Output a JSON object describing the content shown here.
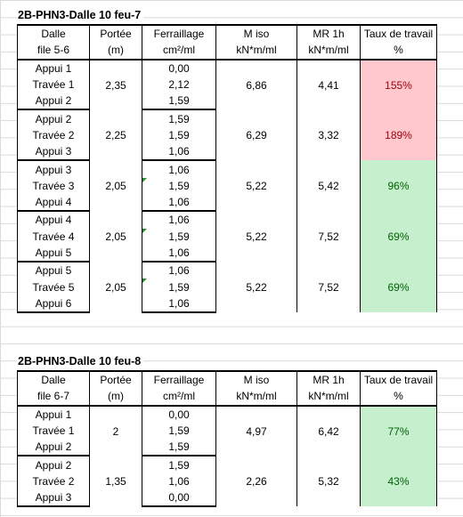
{
  "tables": [
    {
      "title": "2B-PHN3-Dalle 10 feu-7",
      "headers": {
        "row1": [
          "Dalle",
          "Portée",
          "Ferraillage",
          "M iso",
          "MR 1h",
          "Taux de travail"
        ],
        "row2": [
          "file 5-6",
          "(m)",
          "cm²/ml",
          "kN*m/ml",
          "kN*m/ml",
          "%"
        ]
      },
      "groups": [
        {
          "labels": [
            "Appui 1",
            "Travée 1",
            "Appui 2"
          ],
          "portee": "2,35",
          "ferr": [
            "0,00",
            "2,12",
            "1,59"
          ],
          "miso": "6,86",
          "mr": "4,41",
          "taux": "155%",
          "status": "red"
        },
        {
          "labels": [
            "Appui 2",
            "Travée 2",
            "Appui 3"
          ],
          "portee": "2,25",
          "ferr": [
            "1,59",
            "1,59",
            "1,06"
          ],
          "miso": "6,29",
          "mr": "3,32",
          "taux": "189%",
          "status": "red"
        },
        {
          "labels": [
            "Appui 3",
            "Travée 3",
            "Appui 4"
          ],
          "portee": "2,05",
          "ferr": [
            "1,06",
            "1,59",
            "1,06"
          ],
          "miso": "5,22",
          "mr": "5,42",
          "taux": "96%",
          "status": "green"
        },
        {
          "labels": [
            "Appui 4",
            "Travée 4",
            "Appui 5"
          ],
          "portee": "2,05",
          "ferr": [
            "1,06",
            "1,59",
            "1,06"
          ],
          "miso": "5,22",
          "mr": "7,52",
          "taux": "69%",
          "status": "green"
        },
        {
          "labels": [
            "Appui 5",
            "Travée 5",
            "Appui 6"
          ],
          "portee": "2,05",
          "ferr": [
            "1,06",
            "1,59",
            "1,06"
          ],
          "miso": "5,22",
          "mr": "7,52",
          "taux": "69%",
          "status": "green"
        }
      ]
    },
    {
      "title": "2B-PHN3-Dalle 10 feu-8",
      "headers": {
        "row1": [
          "Dalle",
          "Portée",
          "Ferraillage",
          "M iso",
          "MR 1h",
          "Taux de travail"
        ],
        "row2": [
          "file 6-7",
          "(m)",
          "cm²/ml",
          "kN*m/ml",
          "kN*m/ml",
          "%"
        ]
      },
      "groups": [
        {
          "labels": [
            "Appui 1",
            "Travée 1",
            "Appui 2"
          ],
          "portee": "2",
          "ferr": [
            "0,00",
            "1,59",
            "1,59"
          ],
          "miso": "4,97",
          "mr": "6,42",
          "taux": "77%",
          "status": "green"
        },
        {
          "labels": [
            "Appui 2",
            "Travée 2",
            "Appui 3"
          ],
          "portee": "1,35",
          "ferr": [
            "1,59",
            "1,06",
            "0,00"
          ],
          "miso": "2,26",
          "mr": "5,32",
          "taux": "43%",
          "status": "green"
        }
      ]
    }
  ],
  "colors": {
    "red_fill": "#ffc7ce",
    "red_text": "#9c0006",
    "green_fill": "#c6efce",
    "green_text": "#006100",
    "gridline": "#dadada"
  }
}
